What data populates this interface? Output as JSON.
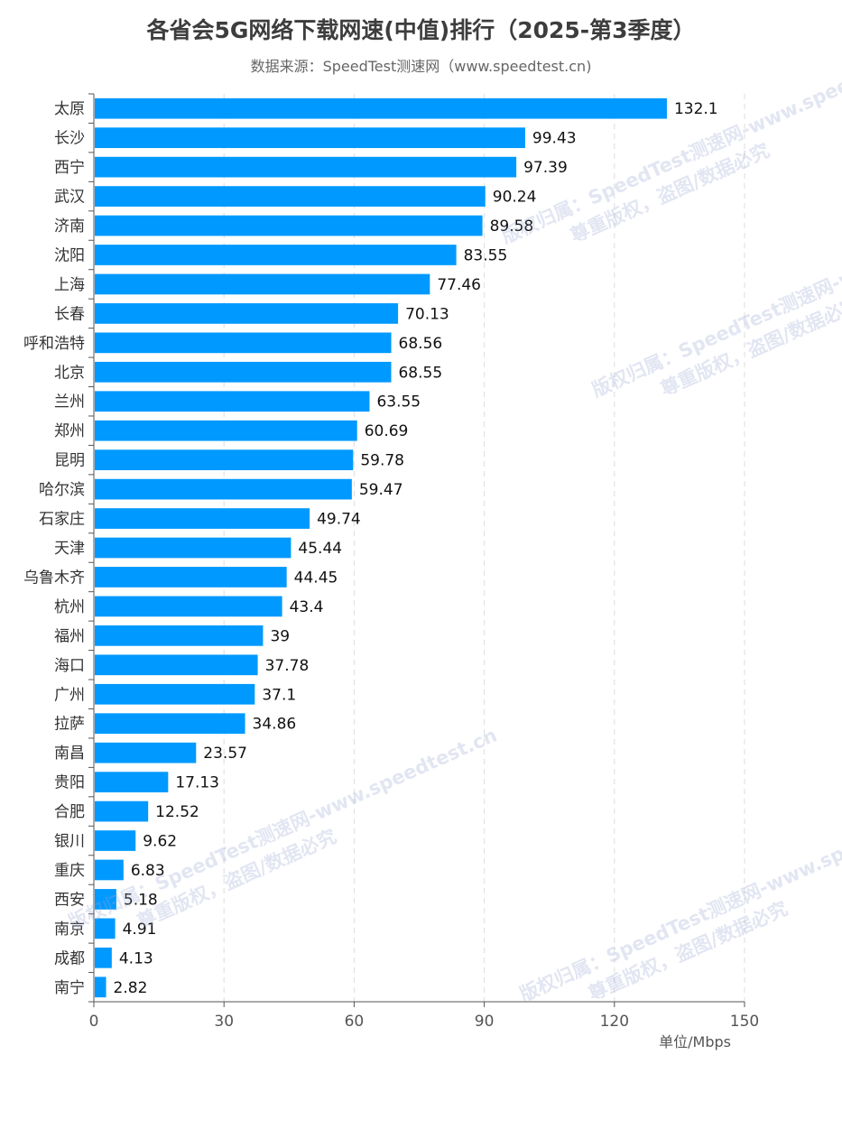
{
  "chart_data": {
    "type": "bar",
    "orientation": "horizontal",
    "title": "各省会5G网络下载网速(中值)排行（2025-第3季度）",
    "subtitle": "数据来源：SpeedTest测速网（www.speedtest.cn)",
    "categories": [
      "太原",
      "长沙",
      "西宁",
      "武汉",
      "济南",
      "沈阳",
      "上海",
      "长春",
      "呼和浩特",
      "北京",
      "兰州",
      "郑州",
      "昆明",
      "哈尔滨",
      "石家庄",
      "天津",
      "乌鲁木齐",
      "杭州",
      "福州",
      "海口",
      "广州",
      "拉萨",
      "南昌",
      "贵阳",
      "合肥",
      "银川",
      "重庆",
      "西安",
      "南京",
      "成都",
      "南宁"
    ],
    "values": [
      132.1,
      99.43,
      97.39,
      90.24,
      89.58,
      83.55,
      77.46,
      70.13,
      68.56,
      68.55,
      63.55,
      60.69,
      59.78,
      59.47,
      49.74,
      45.44,
      44.45,
      43.4,
      39,
      37.78,
      37.1,
      34.86,
      23.57,
      17.13,
      12.52,
      9.62,
      6.83,
      5.18,
      4.91,
      4.13,
      2.82
    ],
    "value_labels": [
      "132.1",
      "99.43",
      "97.39",
      "90.24",
      "89.58",
      "83.55",
      "77.46",
      "70.13",
      "68.56",
      "68.55",
      "63.55",
      "60.69",
      "59.78",
      "59.47",
      "49.74",
      "45.44",
      "44.45",
      "43.4",
      "39",
      "37.78",
      "37.1",
      "34.86",
      "23.57",
      "17.13",
      "12.52",
      "9.62",
      "6.83",
      "5.18",
      "4.91",
      "4.13",
      "2.82"
    ],
    "xlim": [
      0,
      150
    ],
    "xticks": [
      0,
      30,
      60,
      90,
      120,
      150
    ],
    "xtick_labels": [
      "0",
      "30",
      "60",
      "90",
      "120",
      "150"
    ],
    "xlabel": "单位/Mbps",
    "grid": "vertical-dashed",
    "bar_color": "#0099ff"
  },
  "watermark": {
    "line1": "版权归属：SpeedTest测速网-www.speedtest.cn",
    "line2": "尊重版权，盗图/数据必究"
  }
}
